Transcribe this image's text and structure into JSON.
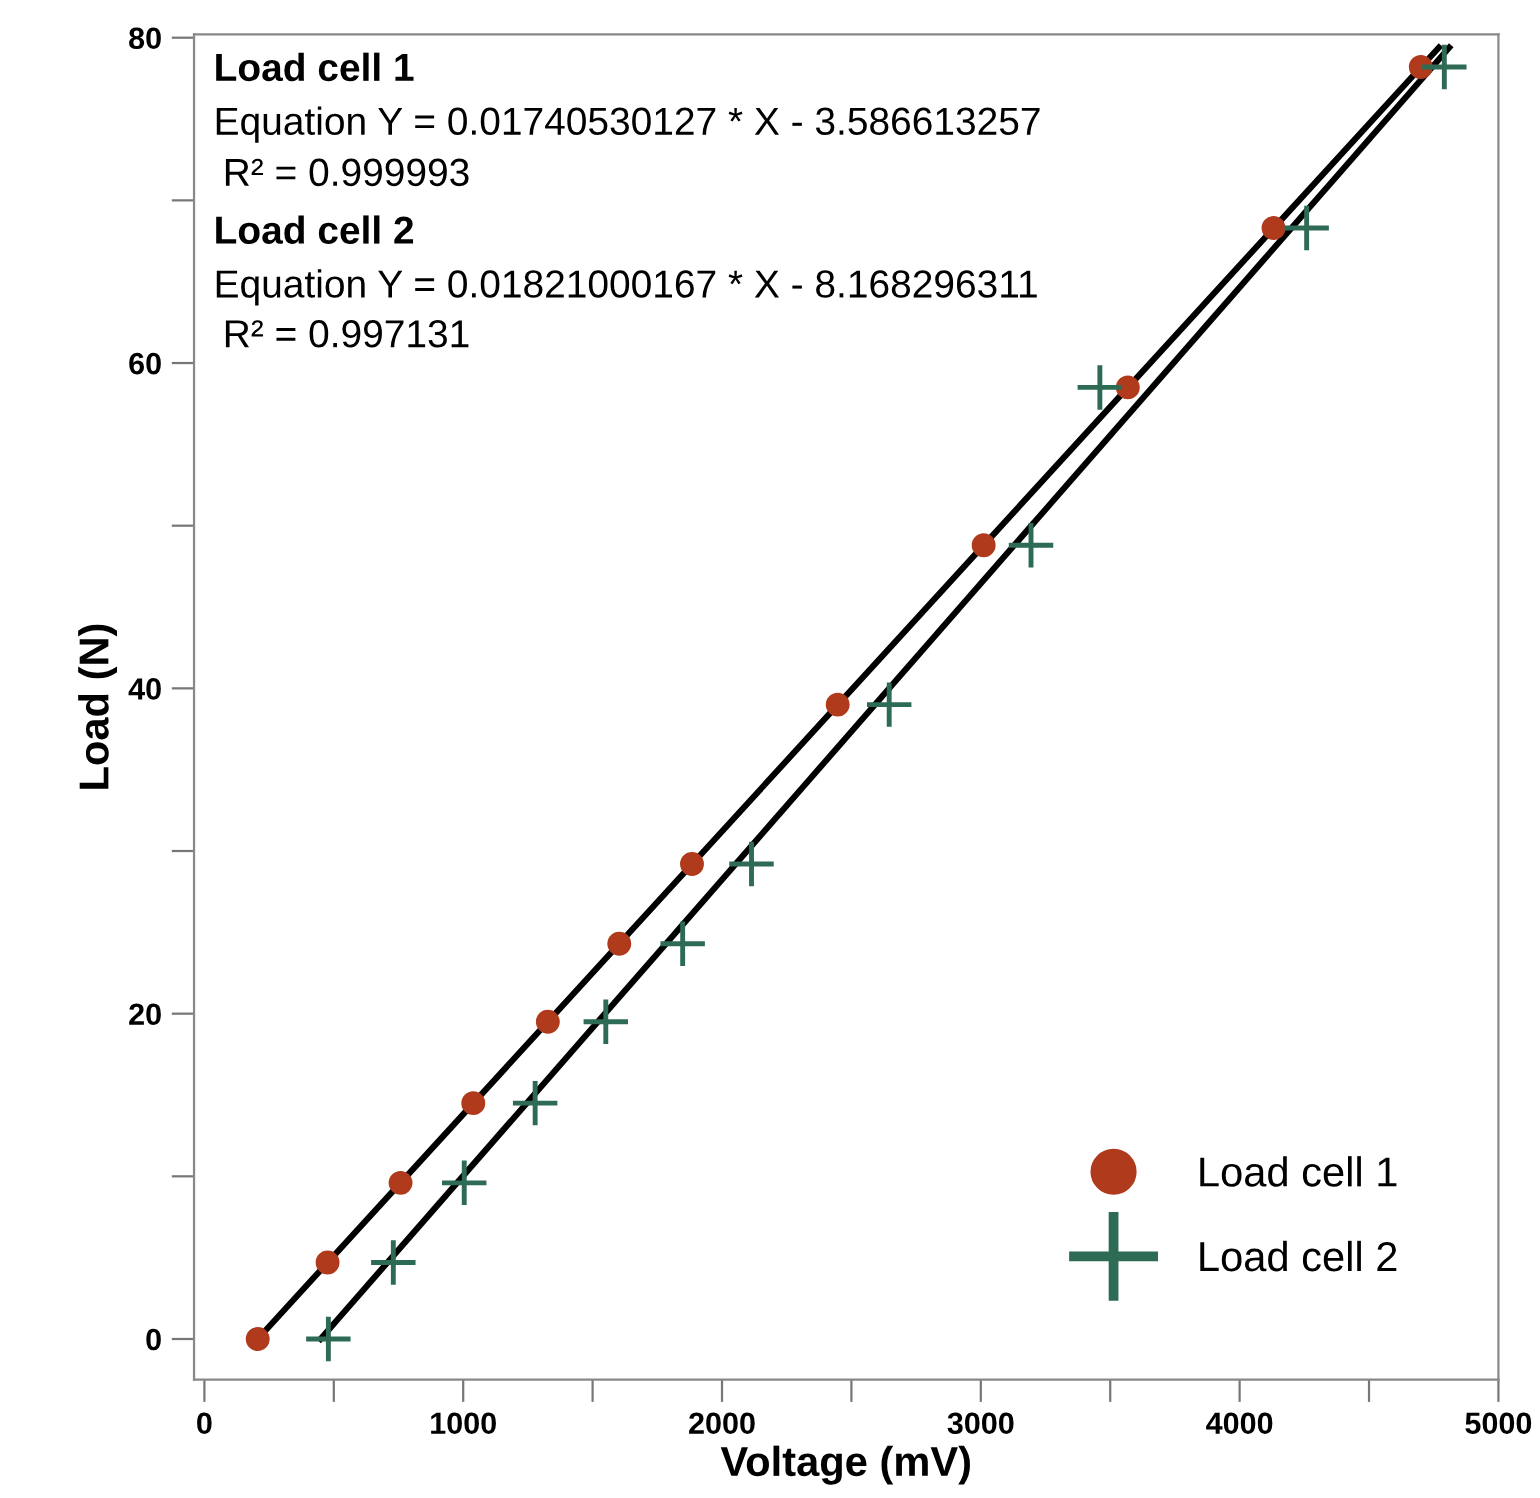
{
  "chart_data": {
    "type": "scatter",
    "xlabel": "Voltage (mV)",
    "ylabel": "Load (N)",
    "xlim": [
      -40,
      5000
    ],
    "ylim": [
      -2.5,
      80.2
    ],
    "xticks": [
      0,
      {
        "value": 500,
        "label": null
      },
      1000,
      {
        "value": 1500,
        "label": null
      },
      2000,
      {
        "value": 2500,
        "label": null
      },
      3000,
      {
        "value": 3500,
        "label": null
      },
      4000,
      {
        "value": 4500,
        "label": null
      },
      5000
    ],
    "yticks": [
      0,
      {
        "value": 10,
        "label": null
      },
      20,
      {
        "value": 30,
        "label": null
      },
      40,
      {
        "value": 50,
        "label": null
      },
      60,
      {
        "value": 70,
        "label": null
      },
      80
    ],
    "series": [
      {
        "name": "Load cell 1",
        "color": "#b03a1c",
        "marker": "circle",
        "x": [
          206,
          476,
          758,
          1039,
          1327,
          1603,
          1884,
          2447,
          3011,
          3568,
          4131,
          4700
        ],
        "values": [
          0,
          4.7,
          9.6,
          14.5,
          19.5,
          24.3,
          29.2,
          39,
          48.8,
          58.5,
          68.3,
          78.2
        ]
      },
      {
        "name": "Load cell 2",
        "color": "#2e6b55",
        "marker": "cross",
        "x": [
          479,
          730,
          1004,
          1278,
          1551,
          1848,
          2114,
          2646,
          3194,
          3460,
          4259,
          4791
        ],
        "values": [
          0,
          4.7,
          9.6,
          14.5,
          19.5,
          24.3,
          29.2,
          39,
          48.8,
          58.5,
          68.3,
          78.2
        ]
      },
      {
        "type": "line",
        "color": "#000000",
        "x": [
          206,
          4770
        ],
        "values": [
          0,
          79.4
        ]
      },
      {
        "type": "line",
        "color": "#000000",
        "x": [
          449,
          4810
        ],
        "values": [
          0,
          79.4
        ]
      }
    ],
    "annotations": [
      "Load cell 1",
      "Equation Y = 0.01740530127 * X - 3.586613257",
      "R² = 0.999993",
      "Load cell 2",
      "Equation Y = 0.01821000167 * X - 8.168296311",
      "R² = 0.997131"
    ],
    "legend": "bottom right",
    "grid": false
  }
}
